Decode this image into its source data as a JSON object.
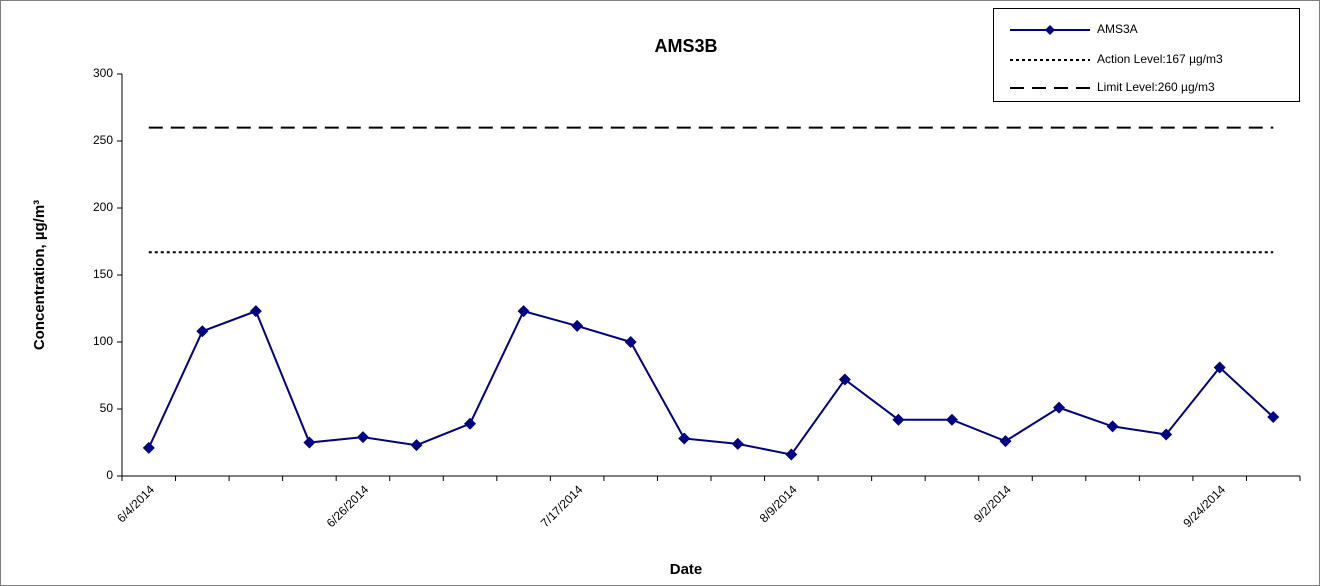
{
  "chart_data": {
    "type": "line",
    "title": "AMS3B",
    "xlabel": "Date",
    "ylabel": "Concentration, µg/m³",
    "categories": [
      "6/4/2014",
      null,
      null,
      null,
      "6/26/2014",
      null,
      null,
      null,
      "7/17/2014",
      null,
      null,
      null,
      "8/9/2014",
      null,
      null,
      null,
      "9/2/2014",
      null,
      null,
      null,
      "9/24/2014",
      null
    ],
    "series": [
      {
        "name": "AMS3A",
        "color": "#000080",
        "marker": "diamond",
        "values": [
          21,
          108,
          123,
          25,
          29,
          23,
          39,
          123,
          112,
          100,
          28,
          24,
          16,
          72,
          42,
          42,
          26,
          51,
          37,
          31,
          81,
          44
        ]
      }
    ],
    "hlines": [
      {
        "name": "Action Level:167 µg/m3",
        "value": 167,
        "color": "#000000",
        "dash": "dotted"
      },
      {
        "name": "Limit Level:260 µg/m3",
        "value": 260,
        "color": "#000000",
        "dash": "dashed"
      }
    ],
    "ylim": [
      0,
      300
    ],
    "yticks": [
      0,
      50,
      100,
      150,
      200,
      250,
      300
    ],
    "grid": false,
    "legend": "upper right"
  }
}
